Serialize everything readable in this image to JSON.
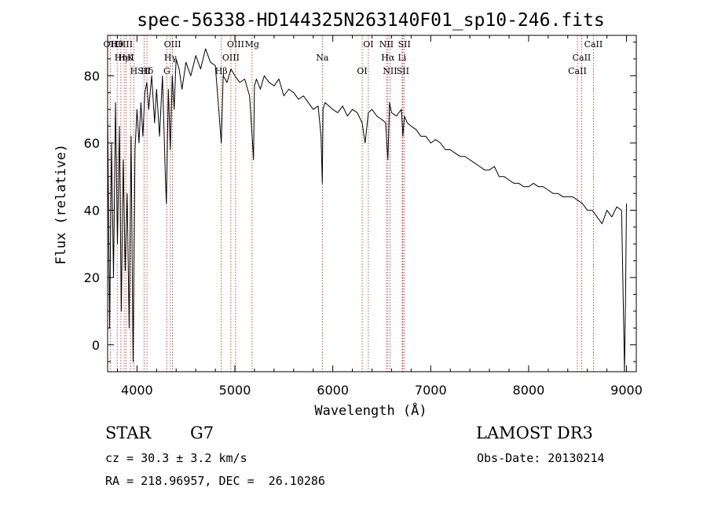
{
  "chart_data": {
    "type": "line",
    "title": "spec-56338-HD144325N263140F01_sp10-246.fits",
    "xlabel": "Wavelength (Å)",
    "ylabel": "Flux (relative)",
    "xlim": [
      3700,
      9100
    ],
    "ylim": [
      -8,
      92
    ],
    "xticks": [
      4000,
      5000,
      6000,
      7000,
      8000,
      9000
    ],
    "yticks": [
      0,
      20,
      40,
      60,
      80
    ],
    "series": [
      {
        "name": "flux",
        "x": [
          3700,
          3720,
          3740,
          3760,
          3780,
          3800,
          3820,
          3840,
          3860,
          3880,
          3900,
          3920,
          3940,
          3960,
          3980,
          4000,
          4020,
          4040,
          4060,
          4080,
          4100,
          4120,
          4150,
          4180,
          4200,
          4230,
          4260,
          4290,
          4300,
          4320,
          4340,
          4360,
          4380,
          4400,
          4430,
          4460,
          4500,
          4550,
          4600,
          4650,
          4700,
          4750,
          4800,
          4830,
          4861,
          4880,
          4920,
          4960,
          5000,
          5050,
          5100,
          5150,
          5180,
          5190,
          5200,
          5220,
          5260,
          5300,
          5350,
          5400,
          5450,
          5500,
          5550,
          5600,
          5650,
          5700,
          5750,
          5800,
          5850,
          5880,
          5893,
          5900,
          5920,
          5960,
          6000,
          6050,
          6100,
          6150,
          6200,
          6250,
          6300,
          6330,
          6363,
          6400,
          6450,
          6500,
          6540,
          6563,
          6580,
          6600,
          6650,
          6700,
          6716,
          6731,
          6760,
          6800,
          6850,
          6900,
          6950,
          7000,
          7050,
          7100,
          7150,
          7200,
          7250,
          7300,
          7350,
          7400,
          7450,
          7500,
          7550,
          7600,
          7650,
          7700,
          7750,
          7800,
          7850,
          7900,
          7950,
          8000,
          8050,
          8100,
          8150,
          8200,
          8250,
          8300,
          8350,
          8400,
          8450,
          8500,
          8550,
          8600,
          8650,
          8700,
          8750,
          8800,
          8850,
          8900,
          8950,
          8980,
          8990,
          9000
        ],
        "values": [
          70,
          5,
          60,
          20,
          72,
          30,
          65,
          10,
          55,
          22,
          45,
          5,
          62,
          -5,
          58,
          70,
          60,
          72,
          62,
          75,
          78,
          70,
          80,
          66,
          76,
          62,
          80,
          50,
          42,
          76,
          58,
          80,
          70,
          85,
          82,
          76,
          84,
          80,
          86,
          82,
          88,
          84,
          83,
          72,
          60,
          80,
          78,
          82,
          80,
          78,
          79,
          74,
          60,
          55,
          77,
          79,
          76,
          80,
          78,
          77,
          79,
          74,
          76,
          75,
          73,
          74,
          72,
          70,
          71,
          62,
          48,
          70,
          72,
          71,
          70,
          69,
          71,
          68,
          70,
          69,
          66,
          60,
          69,
          70,
          68,
          67,
          66,
          55,
          72,
          69,
          68,
          70,
          62,
          68,
          66,
          65,
          64,
          62,
          62,
          60,
          61,
          60,
          58,
          58,
          57,
          56,
          56,
          55,
          54,
          53,
          52,
          52,
          53,
          50,
          50,
          49,
          48,
          48,
          47,
          47,
          48,
          47,
          47,
          46,
          45,
          45,
          44,
          44,
          44,
          43,
          42,
          40,
          40,
          38,
          36,
          40,
          38,
          41,
          40,
          -8,
          14,
          42
        ]
      }
    ],
    "line_ids": [
      {
        "name": "Hθ",
        "wave": 3798
      },
      {
        "name": "K",
        "wave": 3934
      },
      {
        "name": "Hδ",
        "wave": 4102
      },
      {
        "name": "OII",
        "wave": 3727
      },
      {
        "name": "HeI",
        "wave": 3889
      },
      {
        "name": "SII",
        "wave": 4072
      },
      {
        "name": "OIII",
        "wave": 3869
      },
      {
        "name": "Hη",
        "wave": 3835
      },
      {
        "name": "H",
        "wave": 3968
      },
      {
        "name": "OIII",
        "wave": 4363
      },
      {
        "name": "Hγ",
        "wave": 4341
      },
      {
        "name": "G",
        "wave": 4304
      },
      {
        "name": "OIII",
        "wave": 5007
      },
      {
        "name": "OIII",
        "wave": 4959
      },
      {
        "name": "Hβ",
        "wave": 4861
      },
      {
        "name": "Mg",
        "wave": 5175
      },
      {
        "name": "Na",
        "wave": 5893
      },
      {
        "name": "OI",
        "wave": 6300
      },
      {
        "name": "OI",
        "wave": 6363
      },
      {
        "name": "Hα",
        "wave": 6563
      },
      {
        "name": "SII",
        "wave": 6716
      },
      {
        "name": "NII",
        "wave": 6548
      },
      {
        "name": "Li",
        "wave": 6708
      },
      {
        "name": "NII",
        "wave": 6584
      },
      {
        "name": "SII",
        "wave": 6731
      },
      {
        "name": "CaII",
        "wave": 8542
      },
      {
        "name": "CaII",
        "wave": 8498
      },
      {
        "name": "CaII",
        "wave": 8662
      }
    ],
    "colors": {
      "line_marker": "#b22222",
      "trace": "#000000"
    }
  },
  "info": {
    "class": "STAR",
    "subclass": "G7",
    "survey": "LAMOST DR3",
    "cz": "cz = 30.3 ± 3.2 km/s",
    "obs_date": "Obs-Date: 20130214",
    "coords": "RA = 218.96957, DEC =  26.10286"
  }
}
